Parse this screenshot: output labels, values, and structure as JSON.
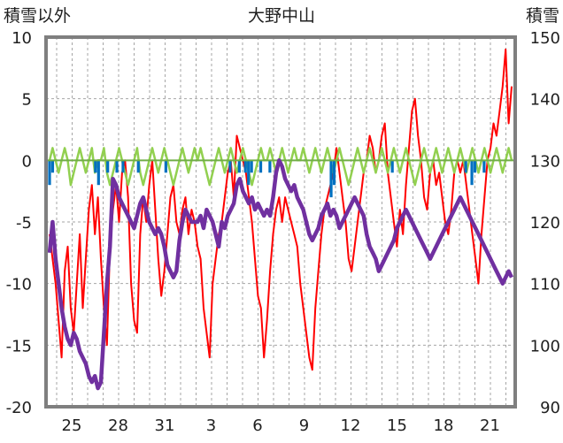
{
  "chart_data": {
    "type": "line",
    "title": "大野中山",
    "left_axis": {
      "label": "積雪以外",
      "ylim": [
        -20,
        10
      ],
      "ticks": [
        "10",
        "5",
        "0",
        "-5",
        "-10",
        "-15",
        "-20"
      ]
    },
    "right_axis": {
      "label": "積雪",
      "ylim": [
        90,
        150
      ],
      "ticks": [
        "150",
        "140",
        "130",
        "120",
        "110",
        "100",
        "90"
      ]
    },
    "x_ticks": [
      "25",
      "28",
      "31",
      "3",
      "6",
      "9",
      "12",
      "15",
      "18",
      "21"
    ],
    "grid": "dashed",
    "series": [
      {
        "color": "#ff0000",
        "axis": "left",
        "values": [
          -6,
          -8,
          -10,
          -13,
          -16,
          -9,
          -7,
          -12,
          -14,
          -10,
          -6,
          -12,
          -8,
          -4,
          -2,
          -6,
          -3,
          -8,
          -12,
          -15,
          -7,
          -4,
          -2,
          -5,
          -1,
          0,
          -3,
          -10,
          -13,
          -14,
          -6,
          -3,
          -5,
          -2,
          0,
          -4,
          -8,
          -11,
          -9,
          -6,
          -3,
          -2,
          -5,
          -6,
          -4,
          -3,
          -6,
          -4,
          -5,
          -7,
          -8,
          -12,
          -14,
          -16,
          -10,
          -8,
          -6,
          -5,
          -3,
          -1,
          0,
          -3,
          2,
          1,
          0,
          -1,
          -3,
          -5,
          -8,
          -11,
          -12,
          -16,
          -13,
          -9,
          -6,
          -4,
          -3,
          -5,
          -3,
          -4,
          -5,
          -6,
          -7,
          -10,
          -12,
          -14,
          -16,
          -17,
          -12,
          -9,
          -6,
          -4,
          -3,
          -2,
          -1,
          1,
          -1,
          -3,
          -5,
          -8,
          -9,
          -7,
          -5,
          -3,
          -1,
          0,
          2,
          1,
          -1,
          0,
          2,
          3,
          -1,
          -3,
          -5,
          -7,
          -4,
          -6,
          -2,
          1,
          4,
          5,
          2,
          0,
          -3,
          -4,
          -1,
          0,
          -2,
          -1,
          -3,
          -5,
          -6,
          -4,
          -1,
          0,
          -1,
          0,
          -2,
          -4,
          -6,
          -8,
          -10,
          -6,
          -3,
          0,
          1,
          3,
          2,
          4,
          6,
          9,
          3,
          6
        ]
      },
      {
        "color": "#92d050",
        "axis": "left",
        "values": [
          0,
          1,
          0,
          -1,
          0,
          1,
          0,
          -2,
          -1,
          0,
          1,
          0,
          -1,
          0,
          1,
          -1,
          0,
          0,
          1,
          -1,
          -2,
          -1,
          0,
          1,
          0,
          -1,
          -2,
          -1,
          0,
          1,
          -1,
          -2,
          -1,
          0,
          1,
          0,
          -1,
          0,
          1,
          0,
          -1,
          -2,
          -1,
          0,
          1,
          0,
          -1,
          0,
          1,
          0,
          1,
          0,
          -1,
          -2,
          -1,
          0,
          1,
          0,
          -1,
          0,
          1,
          0,
          -1,
          0,
          1,
          0,
          -1,
          -2,
          -1,
          0,
          1,
          0,
          0,
          1,
          0,
          -1,
          0,
          1,
          0,
          -1,
          0,
          1,
          0,
          0,
          1,
          0,
          -1,
          0,
          1,
          0,
          -1,
          0,
          1,
          0,
          -1,
          0,
          1,
          0,
          -1,
          -2,
          -1,
          0,
          1,
          0,
          -1,
          0,
          1,
          0,
          -1,
          0,
          1,
          0,
          -1,
          0,
          1,
          0,
          -1,
          0,
          1,
          0,
          -1,
          -2,
          -1,
          0,
          1,
          0,
          -1,
          0,
          1,
          0,
          -1,
          0,
          1,
          0,
          -1,
          0,
          1,
          0,
          -1,
          0,
          1,
          0,
          -1,
          0,
          1,
          0,
          -1,
          0,
          1,
          0,
          -1,
          0,
          1,
          0
        ]
      },
      {
        "color": "#0070c0",
        "axis": "left",
        "values": [
          -2,
          -1,
          0,
          0,
          0,
          0,
          0,
          0,
          0,
          0,
          0,
          0,
          0,
          0,
          0,
          -1,
          -2,
          0,
          0,
          -1,
          0,
          0,
          -1,
          0,
          -1,
          0,
          0,
          0,
          0,
          -1,
          0,
          0,
          0,
          0,
          0,
          0,
          0,
          0,
          -1,
          0,
          0,
          0,
          0,
          0,
          0,
          0,
          0,
          0,
          0,
          0,
          0,
          0,
          0,
          0,
          0,
          0,
          0,
          0,
          0,
          -1,
          0,
          0,
          -1,
          0,
          -1,
          -2,
          -1,
          0,
          0,
          -1,
          0,
          0,
          -1,
          0,
          0,
          0,
          0,
          0,
          0,
          0,
          0,
          0,
          0,
          0,
          0,
          0,
          0,
          0,
          0,
          0,
          0,
          0,
          -3,
          -2,
          0,
          0,
          0,
          0,
          0,
          0,
          0,
          0,
          0,
          0,
          0,
          0,
          0,
          0,
          0,
          0,
          0,
          0,
          -1,
          0,
          0,
          0,
          0,
          0,
          0,
          0,
          0,
          0,
          0,
          0,
          0,
          0,
          0,
          0,
          0,
          0,
          0,
          0,
          0,
          0,
          0,
          0,
          -1,
          0,
          -2,
          -1,
          0,
          0,
          -1,
          0,
          0,
          0,
          0,
          0,
          0,
          0,
          0,
          0
        ]
      },
      {
        "color": "#7030a0",
        "axis": "right",
        "values": [
          115,
          120,
          114,
          110,
          106,
          103,
          101,
          100,
          102,
          101,
          99,
          98,
          97,
          95,
          94,
          95,
          93,
          94,
          102,
          110,
          116,
          127,
          126,
          124,
          123,
          122,
          121,
          120,
          119,
          121,
          123,
          124,
          122,
          120,
          119,
          118,
          119,
          118,
          116,
          113,
          112,
          111,
          112,
          117,
          120,
          122,
          121,
          120,
          120,
          120,
          121,
          119,
          122,
          121,
          120,
          118,
          116,
          120,
          119,
          121,
          122,
          123,
          126,
          127,
          125,
          124,
          123,
          124,
          122,
          123,
          122,
          121,
          122,
          121,
          124,
          128,
          130,
          129,
          127,
          126,
          125,
          126,
          124,
          123,
          122,
          120,
          118,
          117,
          118,
          119,
          121,
          122,
          123,
          121,
          122,
          121,
          119,
          120,
          121,
          122,
          123,
          124,
          123,
          122,
          121,
          118,
          116,
          115,
          114,
          112,
          113,
          114,
          115,
          116,
          117,
          119,
          120,
          121,
          122,
          121,
          120,
          119,
          118,
          117,
          116,
          115,
          114,
          115,
          116,
          117,
          118,
          119,
          120,
          121,
          122,
          123,
          124,
          123,
          122,
          121,
          120,
          119,
          118,
          117,
          116,
          115,
          114,
          113,
          112,
          111,
          110,
          111,
          112,
          111
        ]
      }
    ]
  }
}
